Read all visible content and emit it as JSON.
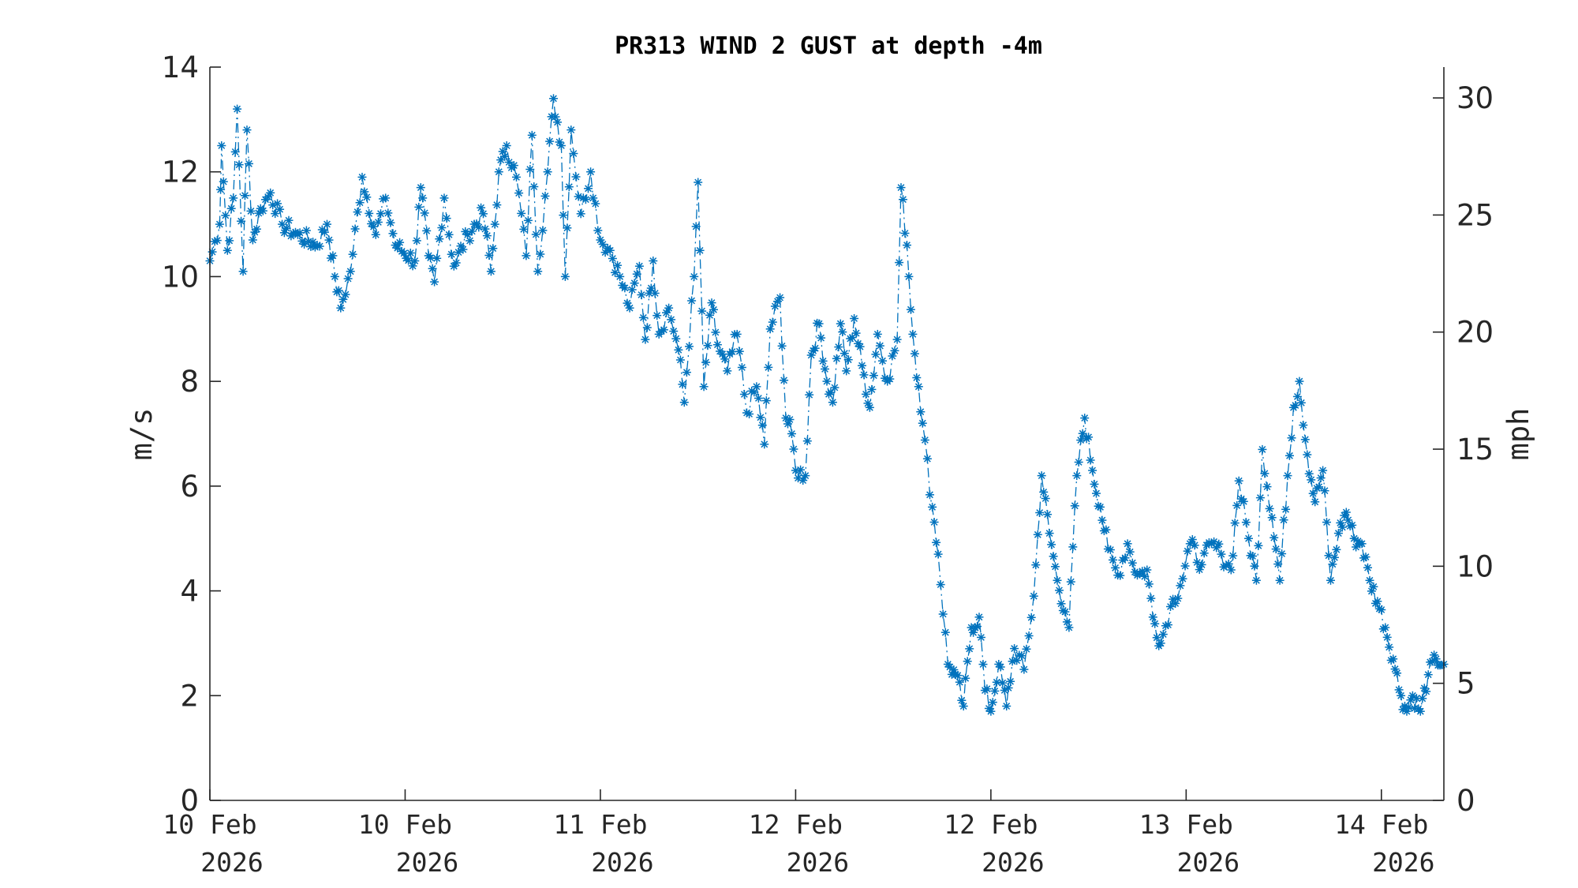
{
  "chart_data": {
    "type": "line",
    "title": "PR313 WIND 2 GUST at depth -4m",
    "ylabel": "m/s",
    "y2label": "mph",
    "ylim": [
      0,
      14
    ],
    "yticks": [
      0,
      2,
      4,
      6,
      8,
      10,
      12,
      14
    ],
    "y2lim": [
      0,
      31.317
    ],
    "y2ticks": [
      0,
      5,
      10,
      15,
      20,
      25,
      30
    ],
    "xlim": [
      0,
      6
    ],
    "xticks": [
      {
        "pos": 0,
        "line1": "10 Feb",
        "line2": "2026"
      },
      {
        "pos": 1,
        "line1": "10 Feb",
        "line2": "2026"
      },
      {
        "pos": 2,
        "line1": "11 Feb",
        "line2": "2026"
      },
      {
        "pos": 3,
        "line1": "12 Feb",
        "line2": "2026"
      },
      {
        "pos": 4,
        "line1": "12 Feb",
        "line2": "2026"
      },
      {
        "pos": 5,
        "line1": "13 Feb",
        "line2": "2026"
      },
      {
        "pos": 6,
        "line1": "14 Feb",
        "line2": "2026"
      }
    ],
    "grid": false,
    "legend": "none",
    "series_color": "#0072BD",
    "line_style": "dash-dot",
    "marker": "asterisk",
    "series": [
      {
        "key_points": [
          [
            0.0,
            10.3
          ],
          [
            0.05,
            11.0
          ],
          [
            0.06,
            12.5
          ],
          [
            0.09,
            10.5
          ],
          [
            0.12,
            11.5
          ],
          [
            0.14,
            13.2
          ],
          [
            0.17,
            10.1
          ],
          [
            0.19,
            12.8
          ],
          [
            0.22,
            10.7
          ],
          [
            0.26,
            11.3
          ],
          [
            0.31,
            11.6
          ],
          [
            0.37,
            11.0
          ],
          [
            0.45,
            10.8
          ],
          [
            0.55,
            10.6
          ],
          [
            0.6,
            11.0
          ],
          [
            0.64,
            10.0
          ],
          [
            0.67,
            9.4
          ],
          [
            0.72,
            10.1
          ],
          [
            0.78,
            11.9
          ],
          [
            0.85,
            10.8
          ],
          [
            0.9,
            11.5
          ],
          [
            0.95,
            10.6
          ],
          [
            1.05,
            10.3
          ],
          [
            1.08,
            11.7
          ],
          [
            1.12,
            10.4
          ],
          [
            1.15,
            9.9
          ],
          [
            1.2,
            11.5
          ],
          [
            1.25,
            10.2
          ],
          [
            1.32,
            10.8
          ],
          [
            1.4,
            11.2
          ],
          [
            1.44,
            10.1
          ],
          [
            1.46,
            11.0
          ],
          [
            1.48,
            12.0
          ],
          [
            1.52,
            12.5
          ],
          [
            1.57,
            11.9
          ],
          [
            1.62,
            10.4
          ],
          [
            1.65,
            12.7
          ],
          [
            1.68,
            10.1
          ],
          [
            1.73,
            12.0
          ],
          [
            1.76,
            13.4
          ],
          [
            1.8,
            12.5
          ],
          [
            1.82,
            10.0
          ],
          [
            1.85,
            12.8
          ],
          [
            1.9,
            11.2
          ],
          [
            1.95,
            12.0
          ],
          [
            2.0,
            10.7
          ],
          [
            2.05,
            10.5
          ],
          [
            2.1,
            10.0
          ],
          [
            2.15,
            9.4
          ],
          [
            2.2,
            10.2
          ],
          [
            2.23,
            8.8
          ],
          [
            2.27,
            10.3
          ],
          [
            2.3,
            8.9
          ],
          [
            2.35,
            9.4
          ],
          [
            2.4,
            8.6
          ],
          [
            2.43,
            7.6
          ],
          [
            2.48,
            10.0
          ],
          [
            2.5,
            11.8
          ],
          [
            2.53,
            7.9
          ],
          [
            2.57,
            9.5
          ],
          [
            2.6,
            8.7
          ],
          [
            2.65,
            8.2
          ],
          [
            2.7,
            8.9
          ],
          [
            2.75,
            7.4
          ],
          [
            2.8,
            7.9
          ],
          [
            2.84,
            6.8
          ],
          [
            2.87,
            9.0
          ],
          [
            2.92,
            9.6
          ],
          [
            2.95,
            7.3
          ],
          [
            2.98,
            7.0
          ],
          [
            3.0,
            6.3
          ],
          [
            3.05,
            6.2
          ],
          [
            3.08,
            8.5
          ],
          [
            3.12,
            9.1
          ],
          [
            3.16,
            8.0
          ],
          [
            3.19,
            7.6
          ],
          [
            3.23,
            9.1
          ],
          [
            3.26,
            8.2
          ],
          [
            3.3,
            9.2
          ],
          [
            3.34,
            8.3
          ],
          [
            3.38,
            7.5
          ],
          [
            3.42,
            8.9
          ],
          [
            3.47,
            8.0
          ],
          [
            3.52,
            8.8
          ],
          [
            3.54,
            11.7
          ],
          [
            3.57,
            10.6
          ],
          [
            3.6,
            8.9
          ],
          [
            3.63,
            7.9
          ],
          [
            3.65,
            7.2
          ],
          [
            3.7,
            5.6
          ],
          [
            3.73,
            4.7
          ],
          [
            3.78,
            2.6
          ],
          [
            3.82,
            2.4
          ],
          [
            3.86,
            1.8
          ],
          [
            3.9,
            3.3
          ],
          [
            3.94,
            3.5
          ],
          [
            3.97,
            2.1
          ],
          [
            4.0,
            1.7
          ],
          [
            4.04,
            2.6
          ],
          [
            4.08,
            1.8
          ],
          [
            4.12,
            2.9
          ],
          [
            4.17,
            2.5
          ],
          [
            4.22,
            3.9
          ],
          [
            4.26,
            6.2
          ],
          [
            4.3,
            5.1
          ],
          [
            4.34,
            4.2
          ],
          [
            4.38,
            3.6
          ],
          [
            4.4,
            3.3
          ],
          [
            4.44,
            6.2
          ],
          [
            4.48,
            7.3
          ],
          [
            4.52,
            6.3
          ],
          [
            4.56,
            5.6
          ],
          [
            4.6,
            4.8
          ],
          [
            4.65,
            4.3
          ],
          [
            4.7,
            4.9
          ],
          [
            4.75,
            4.3
          ],
          [
            4.8,
            4.4
          ],
          [
            4.83,
            3.5
          ],
          [
            4.87,
            3.0
          ],
          [
            4.92,
            3.7
          ],
          [
            4.97,
            4.1
          ],
          [
            5.02,
            4.9
          ],
          [
            5.08,
            4.5
          ],
          [
            5.13,
            4.9
          ],
          [
            5.18,
            4.7
          ],
          [
            5.23,
            4.4
          ],
          [
            5.27,
            6.1
          ],
          [
            5.32,
            5.0
          ],
          [
            5.36,
            4.2
          ],
          [
            5.39,
            6.7
          ],
          [
            5.44,
            5.4
          ],
          [
            5.48,
            4.2
          ],
          [
            5.52,
            6.2
          ],
          [
            5.55,
            7.5
          ],
          [
            5.58,
            8.0
          ],
          [
            5.62,
            6.6
          ],
          [
            5.66,
            5.7
          ],
          [
            5.7,
            6.3
          ],
          [
            5.74,
            4.2
          ],
          [
            5.78,
            5.1
          ],
          [
            5.82,
            5.5
          ],
          [
            5.86,
            5.0
          ],
          [
            5.9,
            4.9
          ],
          [
            5.94,
            4.2
          ],
          [
            5.98,
            3.8
          ],
          [
            6.02,
            3.3
          ],
          [
            6.06,
            2.7
          ],
          [
            6.1,
            2.0
          ],
          [
            6.13,
            1.7
          ],
          [
            6.16,
            2.0
          ],
          [
            6.2,
            1.7
          ],
          [
            6.24,
            2.4
          ],
          [
            6.28,
            2.7
          ],
          [
            6.32,
            2.6
          ]
        ]
      }
    ]
  }
}
